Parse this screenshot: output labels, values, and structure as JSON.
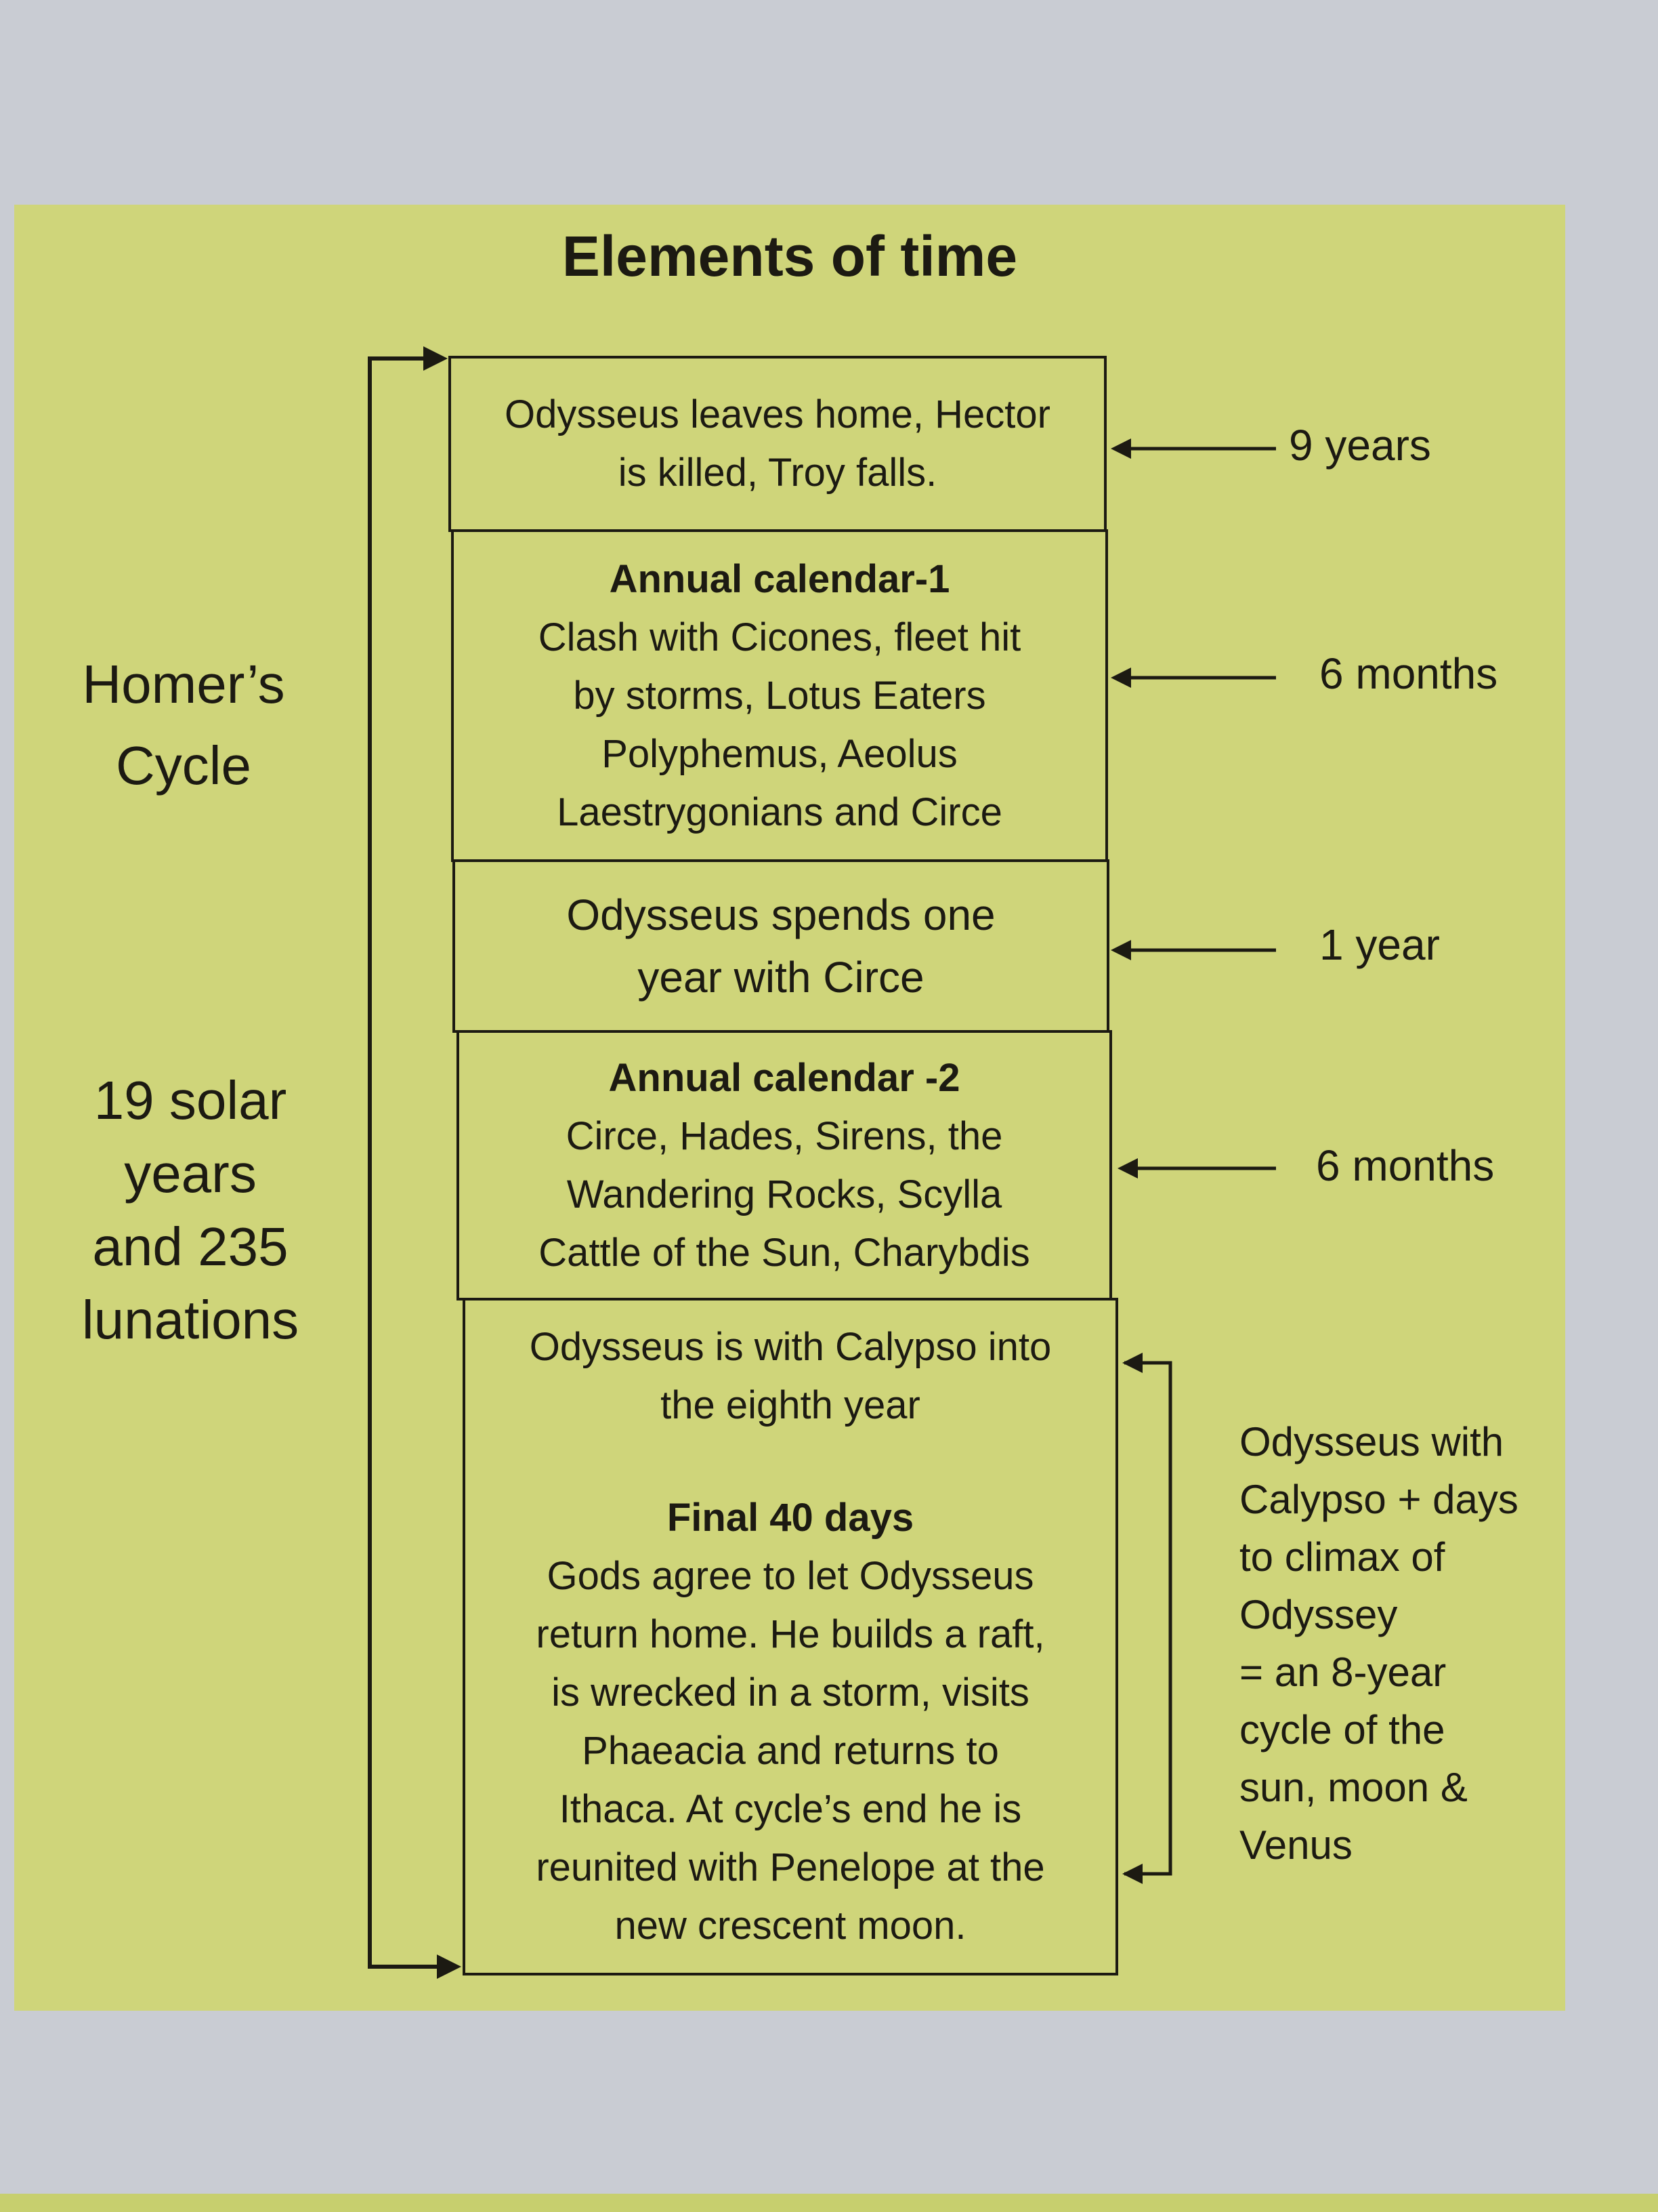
{
  "title": "Elements of time",
  "colors": {
    "panel": "#cfd57a",
    "background": "#c9ccd3",
    "ink": "#1c1a12"
  },
  "left_labels": {
    "homers_cycle": [
      "Homer’s",
      "Cycle"
    ],
    "solar": [
      "19 solar",
      "years",
      "and 235",
      "lunations"
    ]
  },
  "boxes": [
    {
      "lines": [
        "Odysseus leaves home, Hector",
        "is killed, Troy falls."
      ],
      "duration": "9 years"
    },
    {
      "heading": "Annual calendar-1",
      "lines": [
        "Clash with Cicones, fleet hit",
        "by storms, Lotus Eaters",
        "Polyphemus, Aeolus",
        "Laestrygonians and Circe"
      ],
      "duration": "6 months"
    },
    {
      "lines": [
        "Odysseus spends one",
        "year with Circe"
      ],
      "duration": "1 year"
    },
    {
      "heading": "Annual calendar -2",
      "lines": [
        "Circe, Hades, Sirens, the",
        "Wandering Rocks, Scylla",
        "Cattle of the Sun, Charybdis"
      ],
      "duration": "6 months"
    },
    {
      "lines_top": [
        "Odysseus is with Calypso into",
        "the eighth year"
      ],
      "heading": "Final 40 days",
      "lines": [
        "Gods agree to let Odysseus",
        "return home. He builds a raft,",
        "is wrecked in a storm, visits",
        "Phaeacia and returns to",
        "Ithaca. At cycle’s end he is",
        "reunited with Penelope at the",
        "new crescent moon."
      ]
    }
  ],
  "calypso_note": [
    "Odysseus with",
    "Calypso + days",
    "to climax of",
    "Odyssey",
    "= an 8-year",
    "cycle of the",
    "sun, moon &",
    "Venus"
  ]
}
